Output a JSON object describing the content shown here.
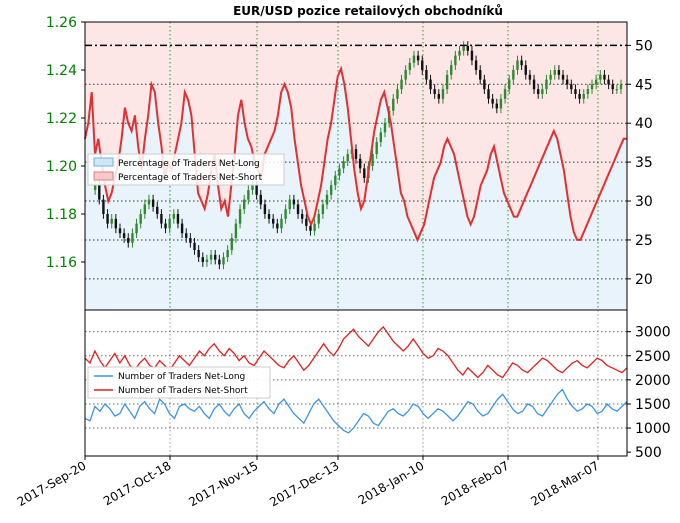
{
  "chart_data": [
    {
      "type": "line",
      "title": "EUR/USD pozice retailových obchodníků",
      "x_ticks": [
        "2017-Sep-20",
        "2017-Oct-18",
        "2017-Nov-15",
        "2017-Dec-13",
        "2018-Jan-10",
        "2018-Feb-07",
        "2018-Mar-07"
      ],
      "price_axis": {
        "ticks": [
          "1.16",
          "1.18",
          "1.20",
          "1.22",
          "1.24",
          "1.26"
        ],
        "ylim": [
          1.14,
          1.26
        ],
        "color": "#008000"
      },
      "percent_axis": {
        "ticks": [
          "20",
          "25",
          "30",
          "35",
          "40",
          "45",
          "50"
        ],
        "ylim": [
          16,
          53
        ]
      },
      "reference_line": 50,
      "legend": {
        "position": "left",
        "entries": [
          "Percentage of Traders Net-Long",
          "Percentage of Traders Net-Short"
        ]
      },
      "series": [
        {
          "name": "Percentage of Traders Net-Short",
          "color": "#e03030",
          "values": [
            38,
            40,
            44,
            36,
            38,
            35,
            32,
            30,
            31,
            33,
            35,
            38,
            42,
            40,
            39,
            41,
            37,
            34,
            38,
            41,
            45,
            44,
            40,
            37,
            33,
            35,
            34,
            36,
            38,
            40,
            44,
            43,
            41,
            36,
            31,
            30,
            29,
            31,
            34,
            36,
            32,
            29,
            30,
            28,
            32,
            36,
            41,
            43,
            40,
            38,
            37,
            35,
            34,
            33,
            36,
            37,
            38,
            39,
            41,
            44,
            45,
            44,
            42,
            38,
            35,
            32,
            30,
            28,
            27,
            28,
            30,
            32,
            35,
            38,
            40,
            43,
            46,
            47,
            45,
            42,
            38,
            34,
            31,
            29,
            30,
            33,
            36,
            39,
            41,
            43,
            44,
            42,
            40,
            37,
            34,
            31,
            30,
            28,
            27,
            26,
            25,
            26,
            27,
            29,
            31,
            33,
            34,
            35,
            37,
            38,
            37,
            36,
            34,
            32,
            30,
            28,
            27,
            28,
            30,
            32,
            33,
            34,
            36,
            37,
            35,
            33,
            31,
            30,
            29,
            28,
            28,
            29,
            30,
            31,
            32,
            33,
            34,
            35,
            36,
            37,
            38,
            39,
            38,
            36,
            34,
            31,
            28,
            26,
            25,
            25,
            26,
            27,
            28,
            29,
            30,
            31,
            32,
            33,
            34,
            35,
            36,
            37,
            38,
            38
          ]
        }
      ],
      "candles": {
        "up_color": "#2d8a2d",
        "down_color": "#111111",
        "close": [
          1.19,
          1.192,
          1.186,
          1.18,
          1.176,
          1.178,
          1.174,
          1.172,
          1.17,
          1.168,
          1.172,
          1.176,
          1.18,
          1.184,
          1.186,
          1.183,
          1.18,
          1.176,
          1.174,
          1.178,
          1.18,
          1.176,
          1.172,
          1.17,
          1.168,
          1.165,
          1.162,
          1.16,
          1.161,
          1.163,
          1.161,
          1.159,
          1.162,
          1.165,
          1.17,
          1.176,
          1.182,
          1.186,
          1.19,
          1.192,
          1.188,
          1.184,
          1.18,
          1.178,
          1.176,
          1.174,
          1.178,
          1.182,
          1.186,
          1.184,
          1.18,
          1.178,
          1.175,
          1.173,
          1.176,
          1.18,
          1.184,
          1.188,
          1.192,
          1.196,
          1.199,
          1.202,
          1.205,
          1.207,
          1.203,
          1.199,
          1.195,
          1.2,
          1.205,
          1.21,
          1.214,
          1.218,
          1.223,
          1.228,
          1.232,
          1.236,
          1.24,
          1.243,
          1.246,
          1.244,
          1.24,
          1.236,
          1.232,
          1.23,
          1.228,
          1.232,
          1.238,
          1.242,
          1.246,
          1.248,
          1.25,
          1.248,
          1.244,
          1.24,
          1.236,
          1.232,
          1.228,
          1.226,
          1.224,
          1.228,
          1.232,
          1.236,
          1.24,
          1.244,
          1.242,
          1.238,
          1.236,
          1.232,
          1.23,
          1.232,
          1.236,
          1.238,
          1.24,
          1.238,
          1.236,
          1.234,
          1.232,
          1.23,
          1.228,
          1.23,
          1.232,
          1.234,
          1.236,
          1.238,
          1.236,
          1.234,
          1.232,
          1.232,
          1.234
        ]
      }
    },
    {
      "type": "line",
      "y_ticks": [
        "500",
        "1000",
        "1500",
        "2000",
        "2500",
        "3000"
      ],
      "ylim": [
        420,
        3450
      ],
      "legend": {
        "position": "left",
        "entries": [
          "Number of Traders Net-Long",
          "Number of Traders Net-Short"
        ]
      },
      "series": [
        {
          "name": "Number of Traders Net-Long",
          "color": "#3b95e6",
          "values": [
            1200,
            1150,
            1450,
            1350,
            1500,
            1400,
            1250,
            1300,
            1500,
            1350,
            1200,
            1450,
            1550,
            1400,
            1300,
            1600,
            1500,
            1300,
            1200,
            1450,
            1500,
            1400,
            1350,
            1450,
            1300,
            1200,
            1400,
            1500,
            1350,
            1250,
            1400,
            1500,
            1300,
            1200,
            1350,
            1450,
            1550,
            1400,
            1300,
            1500,
            1600,
            1450,
            1300,
            1200,
            1100,
            1300,
            1500,
            1600,
            1450,
            1300,
            1150,
            1050,
            950,
            900,
            1000,
            1150,
            1300,
            1250,
            1100,
            1050,
            1200,
            1350,
            1400,
            1300,
            1250,
            1350,
            1500,
            1450,
            1300,
            1200,
            1300,
            1400,
            1350,
            1250,
            1150,
            1250,
            1400,
            1550,
            1500,
            1350,
            1250,
            1300,
            1450,
            1600,
            1700,
            1550,
            1400,
            1300,
            1350,
            1500,
            1450,
            1300,
            1250,
            1400,
            1550,
            1700,
            1800,
            1600,
            1450,
            1350,
            1400,
            1500,
            1450,
            1300,
            1350,
            1500,
            1400,
            1350,
            1450,
            1550
          ]
        },
        {
          "name": "Number of Traders Net-Short",
          "color": "#e02020",
          "values": [
            2450,
            2350,
            2600,
            2400,
            2250,
            2400,
            2550,
            2350,
            2500,
            2300,
            2200,
            2350,
            2450,
            2300,
            2250,
            2400,
            2300,
            2200,
            2350,
            2500,
            2400,
            2300,
            2450,
            2600,
            2500,
            2650,
            2750,
            2600,
            2500,
            2650,
            2550,
            2400,
            2500,
            2350,
            2300,
            2450,
            2600,
            2500,
            2400,
            2300,
            2250,
            2400,
            2500,
            2350,
            2200,
            2300,
            2450,
            2600,
            2750,
            2600,
            2500,
            2650,
            2850,
            2950,
            3050,
            2900,
            2800,
            2700,
            2850,
            3000,
            3100,
            2950,
            2800,
            2700,
            2600,
            2700,
            2850,
            2700,
            2550,
            2450,
            2500,
            2650,
            2600,
            2500,
            2350,
            2200,
            2100,
            2250,
            2150,
            2050,
            2150,
            2300,
            2200,
            2100,
            2050,
            2200,
            2350,
            2300,
            2200,
            2150,
            2250,
            2350,
            2450,
            2400,
            2300,
            2200,
            2150,
            2250,
            2350,
            2400,
            2300,
            2250,
            2350,
            2450,
            2400,
            2300,
            2250,
            2200,
            2150,
            2250
          ]
        }
      ]
    }
  ]
}
